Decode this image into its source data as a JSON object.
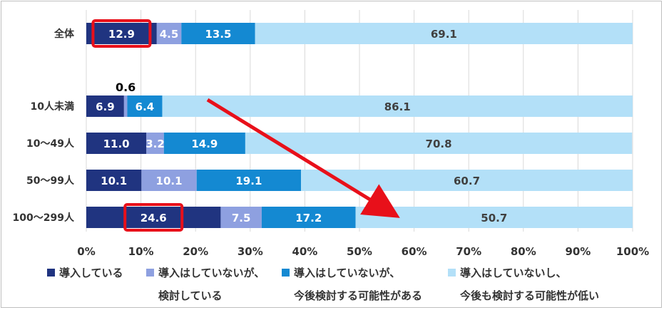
{
  "chart_data": {
    "type": "bar",
    "orientation": "horizontal",
    "stacked": true,
    "categories": [
      "全体",
      "10人未満",
      "10～49人",
      "50～99人",
      "100～299人"
    ],
    "series": [
      {
        "name": "導入している",
        "color": "#203480",
        "label_color": "#ffffff",
        "values": [
          12.9,
          6.9,
          11.0,
          10.1,
          24.6
        ]
      },
      {
        "name": "導入はしていないが、\n検討している",
        "color": "#8ea0e0",
        "label_color": "#ffffff",
        "values": [
          4.5,
          0.6,
          3.2,
          10.1,
          7.5
        ]
      },
      {
        "name": "導入はしていないが、\n今後検討する可能性がある",
        "color": "#1489d2",
        "label_color": "#ffffff",
        "values": [
          13.5,
          6.4,
          14.9,
          19.1,
          17.2
        ]
      },
      {
        "name": "導入はしていないし、\n今後も検討する可能性が低い",
        "color": "#b3e0f8",
        "label_color": "#404040",
        "values": [
          69.1,
          86.1,
          70.8,
          60.7,
          50.7
        ]
      }
    ],
    "value_labels": {
      "全体": [
        "12.9",
        "4.5",
        "13.5",
        "69.1"
      ],
      "10人未満": [
        "6.9",
        "0.6",
        "6.4",
        "86.1"
      ],
      "10～49人": [
        "11.0",
        "3.2",
        "14.9",
        "70.8"
      ],
      "50～99人": [
        "10.1",
        "10.1",
        "19.1",
        "60.7"
      ],
      "100～299人": [
        "24.6",
        "7.5",
        "17.2",
        "50.7"
      ]
    },
    "xlim": [
      0,
      100
    ],
    "x_ticks": [
      "0%",
      "10%",
      "20%",
      "30%",
      "40%",
      "50%",
      "60%",
      "70%",
      "80%",
      "90%",
      "100%"
    ],
    "grid": true,
    "legend_position": "bottom",
    "annotations": {
      "highlight_boxes": [
        {
          "category": "全体",
          "series": "導入している",
          "color": "#e8101a"
        },
        {
          "category": "100～299人",
          "series": "導入している",
          "color": "#e8101a"
        }
      ],
      "arrow": {
        "color": "#e8101a",
        "from": "10人未満",
        "to": "100～299人"
      }
    },
    "title": "",
    "xlabel": "",
    "ylabel": ""
  }
}
